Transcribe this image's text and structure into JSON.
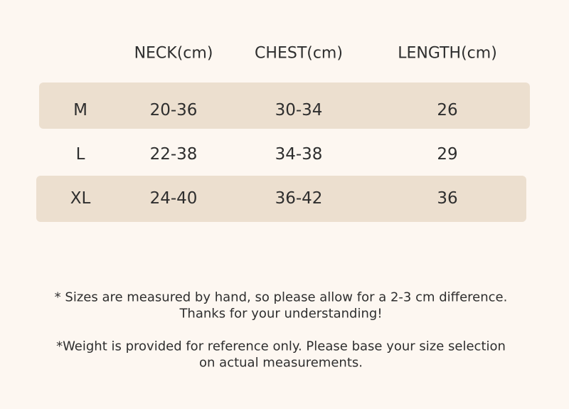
{
  "table": {
    "headers": [
      "NECK(cm)",
      "CHEST(cm)",
      "LENGTH(cm)"
    ],
    "rows": [
      [
        "M",
        "20-36",
        "30-34",
        "26"
      ],
      [
        "L",
        "22-38",
        "34-38",
        "29"
      ],
      [
        "XL",
        "24-40",
        "36-42",
        "36"
      ]
    ]
  },
  "notes": [
    [
      "* Sizes are measured by hand, so please allow for a 2-3 cm difference.",
      "Thanks for your understanding!"
    ],
    [
      "*Weight is provided for reference only. Please base your size selection",
      "on actual measurements."
    ]
  ]
}
